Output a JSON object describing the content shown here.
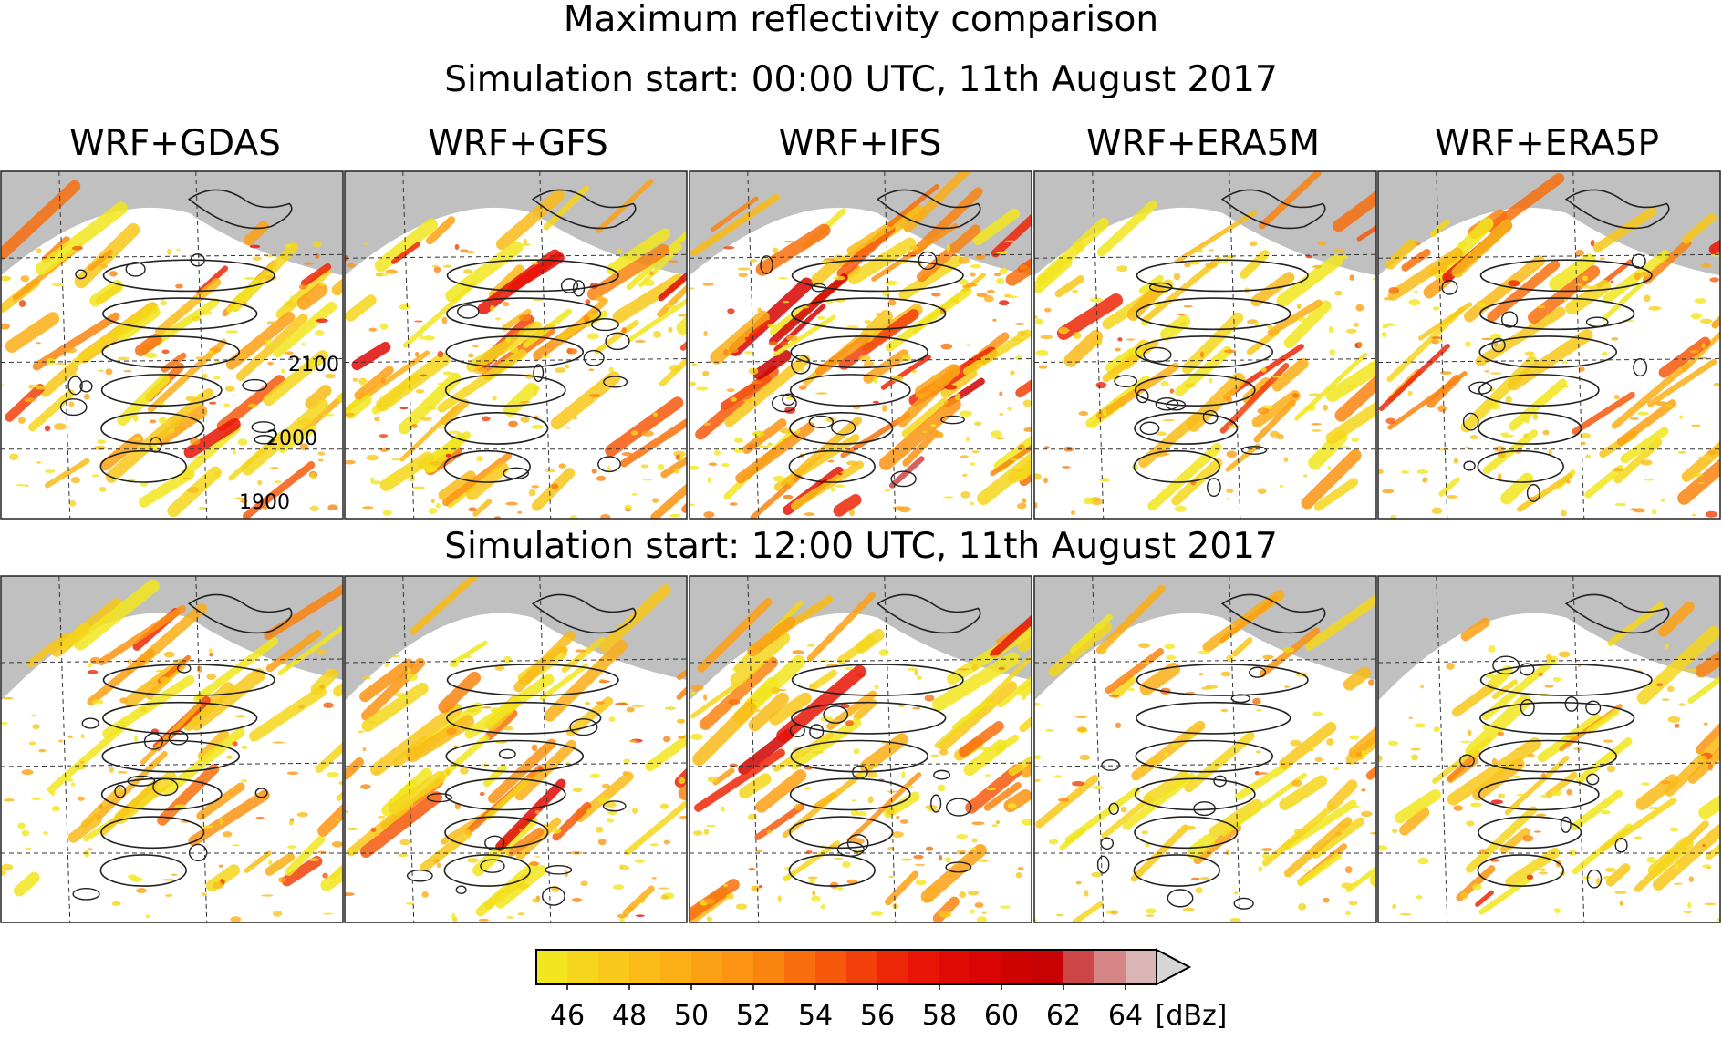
{
  "figure": {
    "title": "Maximum reflectivity comparison",
    "columns": [
      "WRF+GDAS",
      "WRF+GFS",
      "WRF+IFS",
      "WRF+ERA5M",
      "WRF+ERA5P"
    ],
    "rows": [
      {
        "label": "Simulation start: 00:00 UTC, 11th August 2017"
      },
      {
        "label": "Simulation start: 12:00 UTC, 11th August 2017"
      }
    ],
    "contour_labels": [
      "2100",
      "2000",
      "1900"
    ]
  },
  "colors": {
    "land_mask": "#c0c0c0",
    "contour": "#222222",
    "grid": "#333333"
  },
  "chart_data": {
    "type": "heatmap",
    "title": "Maximum reflectivity comparison",
    "variable": "maximum reflectivity",
    "colorbar": {
      "unit": "[dBz]",
      "ticks": [
        46,
        48,
        50,
        52,
        54,
        56,
        58,
        60,
        62,
        64
      ],
      "range": [
        45,
        66
      ],
      "extend": "max",
      "levels": [
        {
          "from": 45,
          "to": 46,
          "color": "#f2e61e"
        },
        {
          "from": 46,
          "to": 47,
          "color": "#f5d61c"
        },
        {
          "from": 47,
          "to": 48,
          "color": "#f8c81a"
        },
        {
          "from": 48,
          "to": 49,
          "color": "#fabb18"
        },
        {
          "from": 49,
          "to": 50,
          "color": "#fbae16"
        },
        {
          "from": 50,
          "to": 51,
          "color": "#fca114"
        },
        {
          "from": 51,
          "to": 52,
          "color": "#fc9312"
        },
        {
          "from": 52,
          "to": 53,
          "color": "#fa8410"
        },
        {
          "from": 53,
          "to": 54,
          "color": "#f8700e"
        },
        {
          "from": 54,
          "to": 55,
          "color": "#f6590c"
        },
        {
          "from": 55,
          "to": 56,
          "color": "#f2400a"
        },
        {
          "from": 56,
          "to": 57,
          "color": "#ee2608"
        },
        {
          "from": 57,
          "to": 58,
          "color": "#e81406"
        },
        {
          "from": 58,
          "to": 59,
          "color": "#e00a05"
        },
        {
          "from": 59,
          "to": 60,
          "color": "#d80504"
        },
        {
          "from": 60,
          "to": 61,
          "color": "#d00303"
        },
        {
          "from": 61,
          "to": 62,
          "color": "#c80202"
        },
        {
          "from": 62,
          "to": 63,
          "color": "#cd4646"
        },
        {
          "from": 63,
          "to": 64,
          "color": "#d58585"
        },
        {
          "from": 64,
          "to": 65,
          "color": "#d9b5b5"
        },
        {
          "from": 65,
          "to": 66,
          "color": "#d6d6d6"
        }
      ]
    },
    "panels_rows": 2,
    "panels_cols": 5
  }
}
